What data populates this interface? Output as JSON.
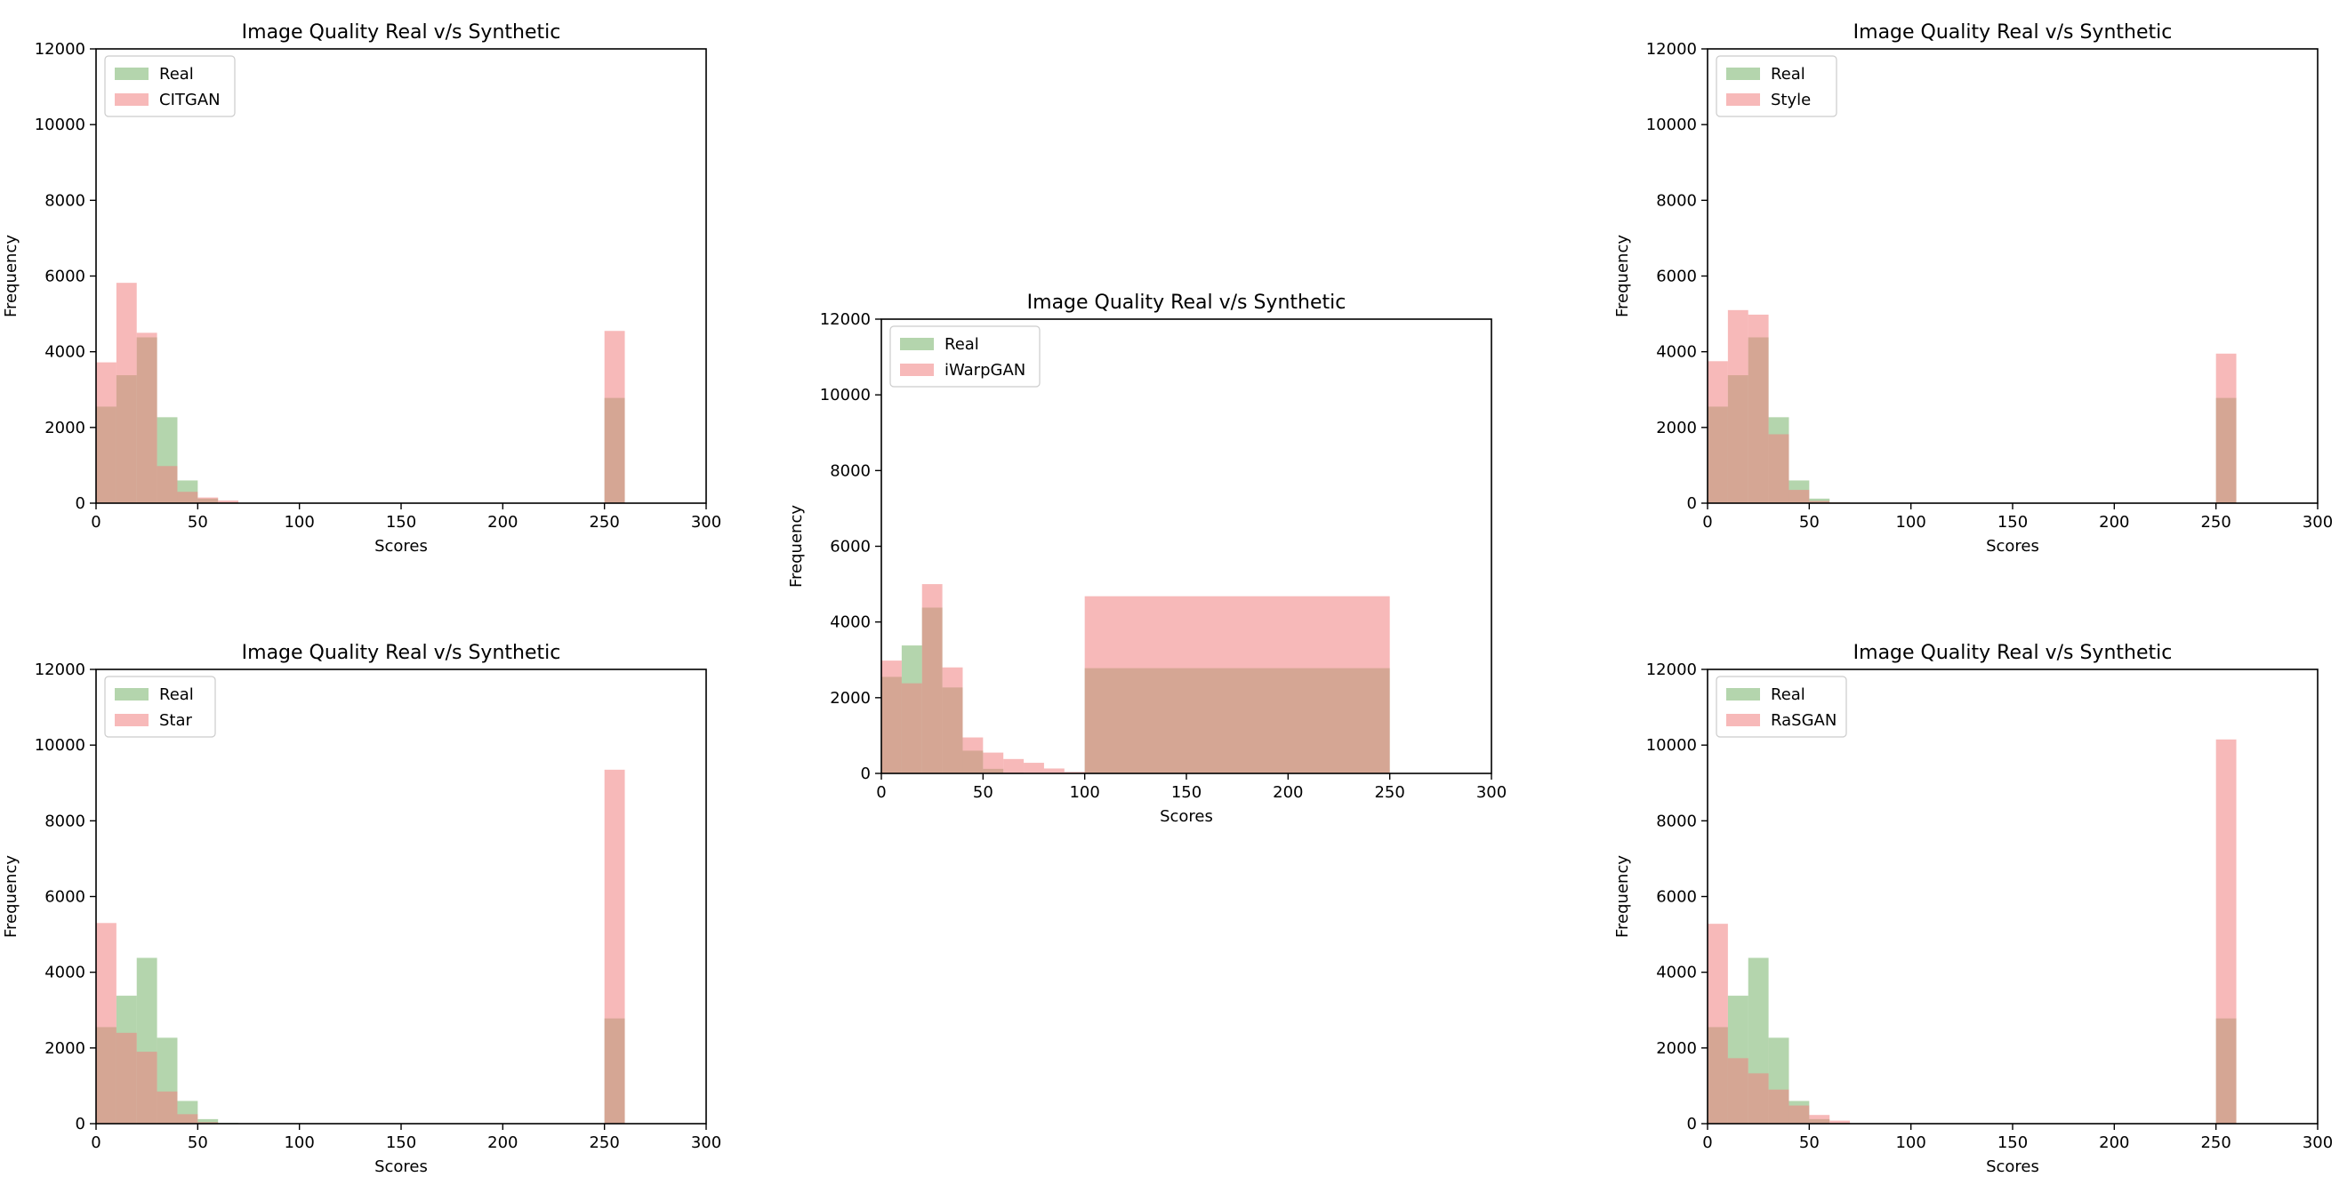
{
  "chart_data": [
    {
      "id": "citgan",
      "type": "histogram",
      "title": "Image Quality Real v/s Synthetic",
      "xlabel": "Scores",
      "ylabel": "Frequency",
      "xlim": [
        0,
        300
      ],
      "ylim": [
        0,
        12000
      ],
      "xticks": [
        "0",
        "50",
        "100",
        "150",
        "200",
        "250",
        "300"
      ],
      "yticks": [
        "0",
        "2000",
        "4000",
        "6000",
        "8000",
        "10000",
        "12000"
      ],
      "legend_position": "top-left",
      "bin_edges": [
        0,
        10,
        20,
        30,
        40,
        50,
        60,
        70,
        250,
        260
      ],
      "series": [
        {
          "name": "Real",
          "color": "#77b26a",
          "values": [
            2550,
            3380,
            4380,
            2270,
            600,
            120,
            20,
            0,
            2780
          ]
        },
        {
          "name": "CITGAN",
          "color": "#f08080",
          "values": [
            3720,
            5820,
            4500,
            980,
            300,
            150,
            70,
            0,
            4550
          ]
        }
      ]
    },
    {
      "id": "iwarpgan",
      "type": "histogram",
      "title": "Image Quality Real v/s Synthetic",
      "xlabel": "Scores",
      "ylabel": "Frequency",
      "xlim": [
        0,
        300
      ],
      "ylim": [
        0,
        12000
      ],
      "xticks": [
        "0",
        "50",
        "100",
        "150",
        "200",
        "250",
        "300"
      ],
      "yticks": [
        "0",
        "2000",
        "4000",
        "6000",
        "8000",
        "10000",
        "12000"
      ],
      "legend_position": "top-left",
      "bin_edges": [
        0,
        10,
        20,
        30,
        40,
        50,
        60,
        70,
        80,
        90,
        100,
        250,
        260
      ],
      "series": [
        {
          "name": "Real",
          "color": "#77b26a",
          "values": [
            2550,
            3380,
            4380,
            2270,
            600,
            120,
            20,
            0,
            0,
            0,
            2780
          ]
        },
        {
          "name": "iWarpGAN",
          "color": "#f08080",
          "values": [
            2980,
            2380,
            5000,
            2800,
            950,
            550,
            380,
            280,
            130,
            40,
            4680
          ]
        }
      ]
    },
    {
      "id": "style",
      "type": "histogram",
      "title": "Image Quality Real v/s Synthetic",
      "xlabel": "Scores",
      "ylabel": "Frequency",
      "xlim": [
        0,
        300
      ],
      "ylim": [
        0,
        12000
      ],
      "xticks": [
        "0",
        "50",
        "100",
        "150",
        "200",
        "250",
        "300"
      ],
      "yticks": [
        "0",
        "2000",
        "4000",
        "6000",
        "8000",
        "10000",
        "12000"
      ],
      "legend_position": "top-left",
      "bin_edges": [
        0,
        10,
        20,
        30,
        40,
        50,
        60,
        70,
        250,
        260
      ],
      "series": [
        {
          "name": "Real",
          "color": "#77b26a",
          "values": [
            2550,
            3380,
            4380,
            2270,
            600,
            120,
            20,
            0,
            2780
          ]
        },
        {
          "name": "Style",
          "color": "#f08080",
          "values": [
            3750,
            5100,
            4980,
            1820,
            350,
            60,
            20,
            0,
            3950
          ]
        }
      ]
    },
    {
      "id": "star",
      "type": "histogram",
      "title": "Image Quality Real v/s Synthetic",
      "xlabel": "Scores",
      "ylabel": "Frequency",
      "xlim": [
        0,
        300
      ],
      "ylim": [
        0,
        12000
      ],
      "xticks": [
        "0",
        "50",
        "100",
        "150",
        "200",
        "250",
        "300"
      ],
      "yticks": [
        "0",
        "2000",
        "4000",
        "6000",
        "8000",
        "10000",
        "12000"
      ],
      "legend_position": "top-left",
      "bin_edges": [
        0,
        10,
        20,
        30,
        40,
        50,
        60,
        70,
        250,
        260
      ],
      "series": [
        {
          "name": "Real",
          "color": "#77b26a",
          "values": [
            2550,
            3380,
            4380,
            2270,
            600,
            120,
            20,
            0,
            2780
          ]
        },
        {
          "name": "Star",
          "color": "#f08080",
          "values": [
            5300,
            2400,
            1900,
            850,
            250,
            40,
            10,
            0,
            9350
          ]
        }
      ]
    },
    {
      "id": "rasgan",
      "type": "histogram",
      "title": "Image Quality Real v/s Synthetic",
      "xlabel": "Scores",
      "ylabel": "Frequency",
      "xlim": [
        0,
        300
      ],
      "ylim": [
        0,
        12000
      ],
      "xticks": [
        "0",
        "50",
        "100",
        "150",
        "200",
        "250",
        "300"
      ],
      "yticks": [
        "0",
        "2000",
        "4000",
        "6000",
        "8000",
        "10000",
        "12000"
      ],
      "legend_position": "top-left",
      "bin_edges": [
        0,
        10,
        20,
        30,
        40,
        50,
        60,
        70,
        250,
        260
      ],
      "series": [
        {
          "name": "Real",
          "color": "#77b26a",
          "values": [
            2550,
            3380,
            4380,
            2270,
            600,
            120,
            20,
            0,
            2780
          ]
        },
        {
          "name": "RaSGAN",
          "color": "#f08080",
          "values": [
            5280,
            1730,
            1330,
            900,
            480,
            230,
            80,
            0,
            10150
          ]
        }
      ]
    }
  ]
}
